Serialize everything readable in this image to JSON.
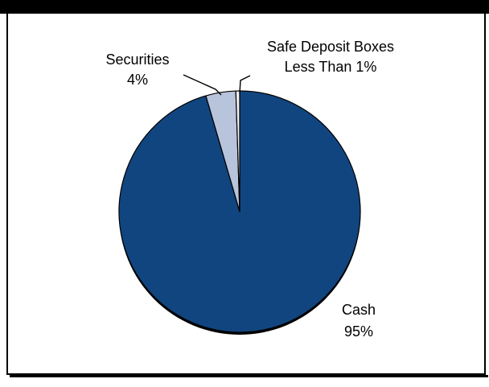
{
  "colors": {
    "cash": "#11457f",
    "securities": "#b8c4dc",
    "safe_deposit_boxes": "#f2f2f2",
    "outline": "#000000",
    "shadow": "#000000",
    "frame": "#000000"
  },
  "labels": {
    "safe_deposit_boxes_name": "Safe Deposit Boxes",
    "safe_deposit_boxes_value": "Less Than 1%",
    "securities_name": "Securities",
    "securities_value": "4%",
    "cash_name": "Cash",
    "cash_value": "95%"
  },
  "chart_data": {
    "type": "pie",
    "title": "",
    "slices": [
      {
        "label": "Cash",
        "value": 95
      },
      {
        "label": "Securities",
        "value": 4
      },
      {
        "label": "Safe Deposit Boxes",
        "value": 0.5
      }
    ],
    "data_labels": [
      "95%",
      "4%",
      "Less Than 1%"
    ],
    "legend": "none",
    "leader_lines": true
  }
}
